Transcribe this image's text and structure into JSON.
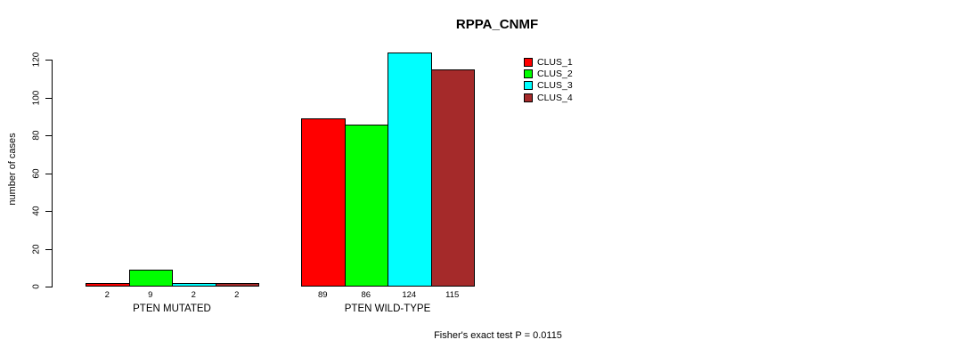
{
  "title": "RPPA_CNMF",
  "footer": "Fisher's exact test P = 0.0115",
  "chart_data": {
    "type": "bar",
    "title": "RPPA_CNMF",
    "categories": [
      "PTEN MUTATED",
      "PTEN WILD-TYPE"
    ],
    "series": [
      {
        "name": "CLUS_1",
        "color": "#FF0000",
        "values": [
          2,
          89
        ]
      },
      {
        "name": "CLUS_2",
        "color": "#00FF00",
        "values": [
          9,
          86
        ]
      },
      {
        "name": "CLUS_3",
        "color": "#00FFFF",
        "values": [
          2,
          124
        ]
      },
      {
        "name": "CLUS_4",
        "color": "#A52A2A",
        "values": [
          2,
          115
        ]
      }
    ],
    "xlabel": "",
    "ylabel": "number of cases",
    "ylim": [
      0,
      120
    ],
    "yticks": [
      0,
      20,
      40,
      60,
      80,
      100,
      120
    ],
    "grid": false,
    "legend_position": "top-right",
    "bar_value_labels": true,
    "annotation": "Fisher's exact test P = 0.0115"
  }
}
